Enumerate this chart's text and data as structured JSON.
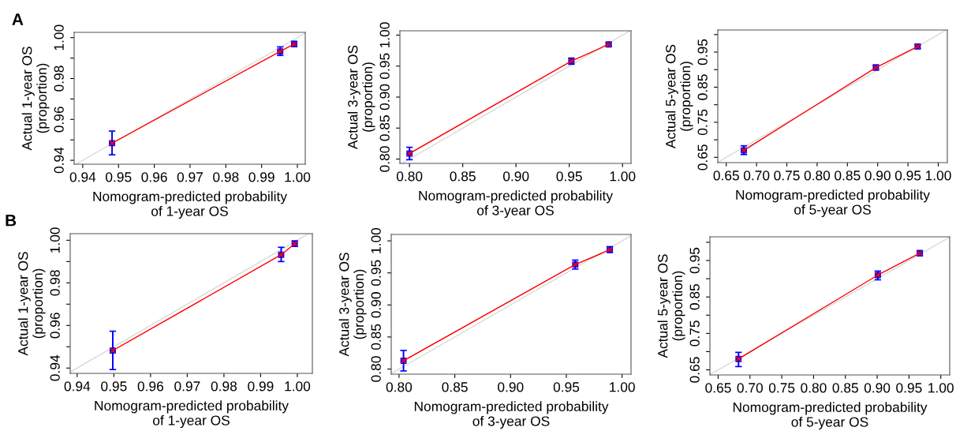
{
  "chart_data": [
    {
      "type": "line",
      "title": "A",
      "xlabel": "Nomogram-predicted probability\nof 1-year OS",
      "ylabel": "Actual 1-year OS\n(proportion)",
      "xlim": [
        0.9376,
        1.0022
      ],
      "ylim": [
        0.9381,
        1.0026
      ],
      "xticks": [
        0.94,
        0.95,
        0.96,
        0.97,
        0.98,
        0.99,
        {
          "value": 1.0,
          "label": "1.00"
        }
      ],
      "yticks": [
        0.94,
        {
          "value": 0.95,
          "label": null
        },
        0.96,
        {
          "value": 0.97,
          "label": null
        },
        0.98,
        {
          "value": 0.99,
          "label": null
        },
        {
          "value": 1.0,
          "label": "1.00"
        }
      ],
      "grid": false,
      "series": [
        {
          "type": "line",
          "color": "#d9d9d9",
          "marker": "none",
          "x": [
            0.9381,
            1.0022
          ],
          "values": [
            0.9381,
            1.0022
          ]
        },
        {
          "type": "scatter",
          "color": "#0000ff",
          "marker": "square",
          "x": [
            0.9482,
            0.9952,
            0.9991
          ],
          "values": [
            0.9484,
            0.9933,
            0.9969
          ],
          "errors": [
            [
              0.9427,
              0.9543
            ],
            [
              0.9913,
              0.9955
            ],
            [
              0.9956,
              0.9982
            ]
          ]
        },
        {
          "color": "#ff0000",
          "marker": "cross",
          "x": [
            0.9482,
            0.9952,
            0.9991
          ],
          "values": [
            0.9484,
            0.9933,
            0.9969
          ]
        }
      ]
    },
    {
      "type": "line",
      "xlabel": "Nomogram-predicted probability\nof 3-year OS",
      "ylabel": "Actual 3-year OS\n(proportion)",
      "xlim": [
        0.791,
        1.008
      ],
      "ylim": [
        0.793,
        1.007
      ],
      "xticks": [
        {
          "value": 0.8,
          "label": "0.80"
        },
        0.85,
        {
          "value": 0.9,
          "label": "0.90"
        },
        0.95,
        {
          "value": 1.0,
          "label": "1.00"
        }
      ],
      "yticks": [
        {
          "value": 0.8,
          "label": "0.80"
        },
        0.85,
        {
          "value": 0.9,
          "label": "0.90"
        },
        0.95,
        {
          "value": 1.0,
          "label": "1.00"
        }
      ],
      "grid": false,
      "series": [
        {
          "type": "line",
          "color": "#d9d9d9",
          "marker": "none",
          "x": [
            0.793,
            1.007
          ],
          "values": [
            0.793,
            1.007
          ]
        },
        {
          "type": "scatter",
          "color": "#0000ff",
          "marker": "square",
          "x": [
            0.8,
            0.952,
            0.987
          ],
          "values": [
            0.809,
            0.958,
            0.985
          ],
          "errors": [
            [
              0.799,
              0.819
            ],
            [
              0.953,
              0.963
            ],
            [
              0.982,
              0.988
            ]
          ]
        },
        {
          "color": "#ff0000",
          "marker": "cross",
          "x": [
            0.8,
            0.952,
            0.987
          ],
          "values": [
            0.809,
            0.958,
            0.985
          ]
        }
      ]
    },
    {
      "type": "line",
      "xlabel": "Nomogram-predicted probability\nof 5-year OS",
      "ylabel": "Actual 5-year OS\n(proportion)",
      "xlim": [
        0.636,
        1.015
      ],
      "ylim": [
        0.635,
        1.013
      ],
      "xticks": [
        0.65,
        {
          "value": 0.7,
          "label": "0.70"
        },
        0.75,
        {
          "value": 0.8,
          "label": "0.80"
        },
        0.85,
        {
          "value": 0.9,
          "label": "0.90"
        },
        0.95,
        {
          "value": 1.0,
          "label": "1.00"
        }
      ],
      "yticks": [
        0.65,
        {
          "value": 0.7,
          "label": null
        },
        0.75,
        {
          "value": 0.8,
          "label": null
        },
        0.85,
        {
          "value": 0.9,
          "label": null
        },
        0.95,
        {
          "value": 1.0,
          "label": null
        }
      ],
      "grid": false,
      "series": [
        {
          "type": "line",
          "color": "#d9d9d9",
          "marker": "none",
          "x": [
            0.636,
            1.013
          ],
          "values": [
            0.636,
            1.013
          ]
        },
        {
          "type": "scatter",
          "color": "#0000ff",
          "marker": "square",
          "x": [
            0.679,
            0.897,
            0.966
          ],
          "values": [
            0.67,
            0.906,
            0.966
          ],
          "errors": [
            [
              0.658,
              0.683
            ],
            [
              0.899,
              0.913
            ],
            [
              0.96,
              0.972
            ]
          ]
        },
        {
          "color": "#ff0000",
          "marker": "cross",
          "x": [
            0.679,
            0.897,
            0.966
          ],
          "values": [
            0.67,
            0.906,
            0.966
          ]
        }
      ]
    },
    {
      "type": "line",
      "title": "B",
      "xlabel": "Nomogram-predicted probability\nof 1-year OS",
      "ylabel": "Actual 1-year OS\n(proportion)",
      "xlim": [
        0.9381,
        1.0041
      ],
      "ylim": [
        0.9375,
        1.0031
      ],
      "xticks": [
        0.94,
        0.95,
        0.96,
        0.97,
        0.98,
        0.99,
        {
          "value": 1.0,
          "label": "1.00"
        }
      ],
      "yticks": [
        0.94,
        {
          "value": 0.95,
          "label": null
        },
        0.96,
        {
          "value": 0.97,
          "label": null
        },
        0.98,
        {
          "value": 0.99,
          "label": null
        },
        {
          "value": 1.0,
          "label": "1.00"
        }
      ],
      "grid": false,
      "series": [
        {
          "type": "line",
          "color": "#d9d9d9",
          "marker": "none",
          "x": [
            0.9381,
            1.0031
          ],
          "values": [
            0.9381,
            1.0031
          ]
        },
        {
          "type": "scatter",
          "color": "#0000ff",
          "marker": "square",
          "x": [
            0.9497,
            0.9956,
            0.9993
          ],
          "values": [
            0.9482,
            0.9932,
            0.9984
          ],
          "errors": [
            [
              0.9393,
              0.9573
            ],
            [
              0.99,
              0.9967
            ],
            [
              0.9971,
              0.9997
            ]
          ]
        },
        {
          "color": "#ff0000",
          "marker": "cross",
          "x": [
            0.9497,
            0.9956,
            0.9993
          ],
          "values": [
            0.9482,
            0.9932,
            0.9984
          ]
        }
      ]
    },
    {
      "type": "line",
      "xlabel": "Nomogram-predicted probability\nof 3-year OS",
      "ylabel": "Actual 3-year OS\n(proportion)",
      "xlim": [
        0.793,
        1.008
      ],
      "ylim": [
        0.792,
        1.01
      ],
      "xticks": [
        {
          "value": 0.8,
          "label": "0.80"
        },
        0.85,
        {
          "value": 0.9,
          "label": "0.90"
        },
        0.95,
        {
          "value": 1.0,
          "label": "1.00"
        }
      ],
      "yticks": [
        {
          "value": 0.8,
          "label": "0.80"
        },
        0.85,
        {
          "value": 0.9,
          "label": "0.90"
        },
        0.95,
        {
          "value": 1.0,
          "label": "1.00"
        }
      ],
      "grid": false,
      "series": [
        {
          "type": "line",
          "color": "#d9d9d9",
          "marker": "none",
          "x": [
            0.793,
            1.008
          ],
          "values": [
            0.793,
            1.008
          ]
        },
        {
          "type": "scatter",
          "color": "#0000ff",
          "marker": "square",
          "x": [
            0.804,
            0.958,
            0.989
          ],
          "values": [
            0.813,
            0.963,
            0.986
          ],
          "errors": [
            [
              0.797,
              0.829
            ],
            [
              0.956,
              0.97
            ],
            [
              0.982,
              0.991
            ]
          ]
        },
        {
          "color": "#ff0000",
          "marker": "cross",
          "x": [
            0.804,
            0.958,
            0.989
          ],
          "values": [
            0.813,
            0.963,
            0.986
          ]
        }
      ]
    },
    {
      "type": "line",
      "xlabel": "Nomogram-predicted probability\nof 5-year OS",
      "ylabel": "Actual 5-year OS\n(proportion)",
      "xlim": [
        0.637,
        1.014
      ],
      "ylim": [
        0.636,
        1.015
      ],
      "xticks": [
        0.65,
        {
          "value": 0.7,
          "label": "0.70"
        },
        0.75,
        {
          "value": 0.8,
          "label": "0.80"
        },
        0.85,
        {
          "value": 0.9,
          "label": "0.90"
        },
        0.95,
        {
          "value": 1.0,
          "label": "1.00"
        }
      ],
      "yticks": [
        0.65,
        {
          "value": 0.7,
          "label": null
        },
        0.75,
        {
          "value": 0.8,
          "label": null
        },
        0.85,
        {
          "value": 0.9,
          "label": null
        },
        0.95,
        {
          "value": 1.0,
          "label": null
        }
      ],
      "grid": false,
      "series": [
        {
          "type": "line",
          "color": "#d9d9d9",
          "marker": "none",
          "x": [
            0.637,
            1.014
          ],
          "values": [
            0.637,
            1.014
          ]
        },
        {
          "type": "scatter",
          "color": "#0000ff",
          "marker": "square",
          "x": [
            0.682,
            0.901,
            0.967
          ],
          "values": [
            0.68,
            0.91,
            0.97
          ],
          "errors": [
            [
              0.659,
              0.698
            ],
            [
              0.897,
              0.921
            ],
            [
              0.963,
              0.977
            ]
          ]
        },
        {
          "color": "#ff0000",
          "marker": "cross",
          "x": [
            0.682,
            0.901,
            0.967
          ],
          "values": [
            0.68,
            0.91,
            0.97
          ]
        }
      ]
    }
  ]
}
